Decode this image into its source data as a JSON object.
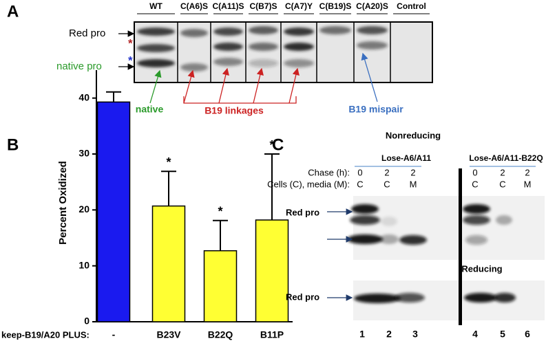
{
  "panel_a": {
    "letter": "A",
    "lanes": [
      "WT",
      "C(A6)S",
      "C(A11)S",
      "C(B7)S",
      "C(A7)Y",
      "C(B19)S",
      "C(A20)S",
      "Control"
    ],
    "red_pro": "Red pro",
    "native_pro": "native pro",
    "star_red": "*",
    "star_blue": "*",
    "native": "native",
    "b19_linkages": "B19 linkages",
    "b19_mispair": "B19 mispair"
  },
  "chart_data": {
    "type": "bar",
    "panel_letter": "B",
    "y_label": "Percent Oxidized",
    "x_label": "keep-B19/A20 PLUS:",
    "categories": [
      "-",
      "B23V",
      "B22Q",
      "B11P"
    ],
    "values": [
      39.3,
      20.7,
      12.7,
      18.2
    ],
    "errors": [
      1.8,
      6.2,
      5.4,
      11.8
    ],
    "colors": [
      "#1a1aef",
      "#ffff33",
      "#ffff33",
      "#ffff33"
    ],
    "markers": [
      null,
      "*",
      "*",
      "*"
    ],
    "ylim": [
      0,
      45
    ],
    "yticks": [
      0,
      10,
      20,
      30,
      40
    ]
  },
  "panel_c": {
    "letter": "C",
    "nonreducing": "Nonreducing",
    "reducing": "Reducing",
    "chase_label": "Chase (h):",
    "cells_label": "Cells (C), media (M):",
    "groups": [
      {
        "name": "Lose-A6/A11",
        "chase": [
          0,
          2,
          2
        ],
        "cells": [
          "C",
          "C",
          "M"
        ]
      },
      {
        "name": "Lose-A6/A11-B22Q",
        "chase": [
          0,
          2,
          2
        ],
        "cells": [
          "C",
          "C",
          "M"
        ]
      }
    ],
    "red_pro_top": "Red pro",
    "red_pro_bottom": "Red pro",
    "lane_numbers": [
      1,
      2,
      3,
      4,
      5,
      6
    ]
  }
}
